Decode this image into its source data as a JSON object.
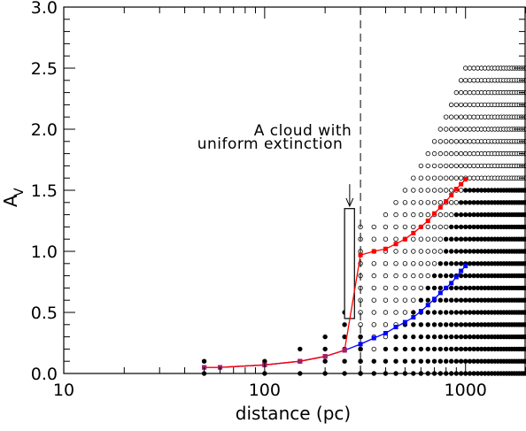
{
  "chart_data": {
    "type": "scatter",
    "x_scale": "log",
    "xlim": [
      10,
      2000
    ],
    "ylim": [
      0,
      3.0
    ],
    "xlabel": "distance (pc)",
    "ylabel_main": "A",
    "ylabel_sub": "V",
    "x_ticks": [
      {
        "value": 10,
        "label": "10"
      },
      {
        "value": 100,
        "label": "100"
      },
      {
        "value": 1000,
        "label": "1000"
      }
    ],
    "y_ticks": [
      {
        "value": 0.0,
        "label": "0.0"
      },
      {
        "value": 0.5,
        "label": "0.5"
      },
      {
        "value": 1.0,
        "label": "1.0"
      },
      {
        "value": 1.5,
        "label": "1.5"
      },
      {
        "value": 2.0,
        "label": "2.0"
      },
      {
        "value": 2.5,
        "label": "2.5"
      },
      {
        "value": 3.0,
        "label": "3.0"
      }
    ],
    "vertical_line": {
      "x": 300,
      "style": "dashed"
    },
    "cloud_box": {
      "x_start": 250,
      "x_end": 280,
      "y_bottom": 0.45,
      "y_top": 1.35
    },
    "annotation": {
      "lines": [
        "A cloud with",
        "uniform extinction"
      ],
      "arrow_x": 265,
      "arrow_y_start": 1.55,
      "arrow_y_end": 1.37
    },
    "series": [
      {
        "color": "#ff0000",
        "marker": "square",
        "x": [
          50,
          60,
          100,
          150,
          200,
          250,
          300,
          350,
          400,
          450,
          500,
          550,
          600,
          650,
          700,
          750,
          800,
          850,
          900,
          950,
          1000
        ],
        "y": [
          0.05,
          0.05,
          0.07,
          0.1,
          0.14,
          0.19,
          0.97,
          1.0,
          1.02,
          1.06,
          1.1,
          1.15,
          1.2,
          1.25,
          1.31,
          1.36,
          1.41,
          1.46,
          1.51,
          1.55,
          1.59
        ]
      },
      {
        "color": "#0000ff",
        "marker": "square",
        "x": [
          50,
          60,
          100,
          150,
          200,
          250,
          300,
          350,
          400,
          450,
          500,
          550,
          600,
          650,
          700,
          750,
          800,
          850,
          900,
          950,
          1000
        ],
        "y": [
          0.05,
          0.05,
          0.07,
          0.1,
          0.14,
          0.19,
          0.24,
          0.29,
          0.33,
          0.38,
          0.42,
          0.46,
          0.51,
          0.56,
          0.61,
          0.66,
          0.7,
          0.74,
          0.79,
          0.84,
          0.88
        ]
      }
    ]
  }
}
